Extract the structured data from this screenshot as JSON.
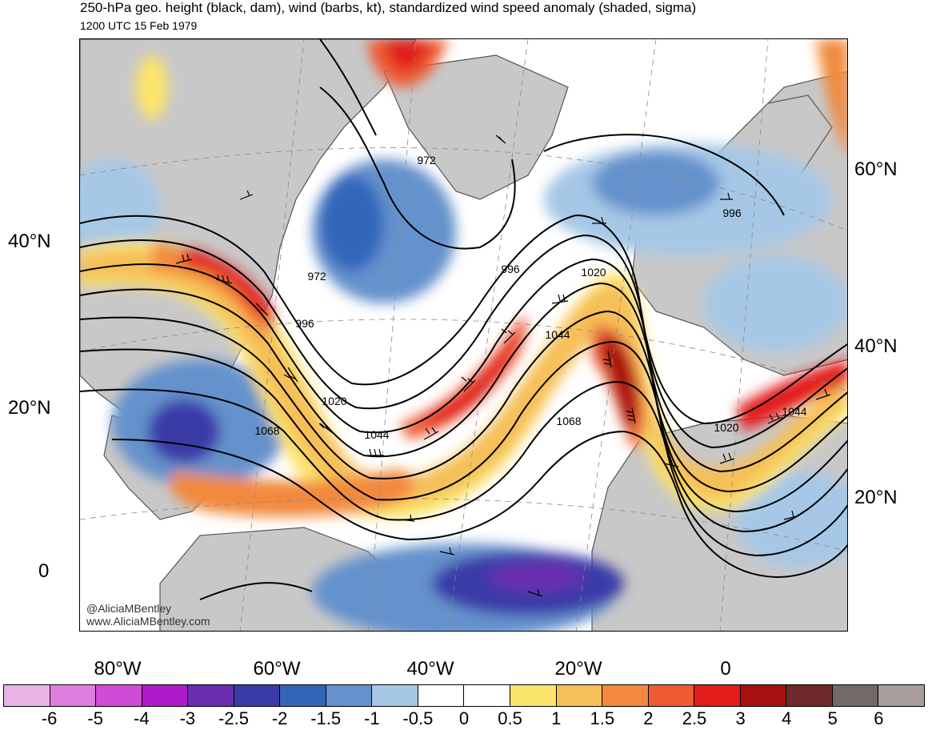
{
  "header": {
    "title": "250-hPa geo. height (black, dam), wind (barbs, kt), standardized wind speed anomaly (shaded, sigma)",
    "valid_time": "1200 UTC 15 Feb 1979"
  },
  "map": {
    "lat_labels_left": [
      "40°N",
      "20°N",
      "0"
    ],
    "lat_labels_right": [
      "60°N",
      "40°N",
      "20°N"
    ],
    "lon_labels": [
      "80°W",
      "60°W",
      "40°W",
      "20°W",
      "0"
    ],
    "contour_labels": [
      "972",
      "972",
      "996",
      "996",
      "996",
      "1020",
      "1020",
      "1020",
      "1044",
      "1044",
      "1044",
      "1068",
      "1068"
    ],
    "credit_twitter": "@AliciaMBentley",
    "credit_web": "www.AliciaMBentley.com",
    "colors": {
      "land": "#c8c8c8",
      "ocean": "#ffffff",
      "contour": "#000000",
      "coast": "#555555"
    }
  },
  "colorbar": {
    "labels": [
      "-6",
      "-5",
      "-4",
      "-3",
      "-2.5",
      "-2",
      "-1.5",
      "-1",
      "-0.5",
      "0",
      "0.5",
      "1",
      "1.5",
      "2",
      "2.5",
      "3",
      "4",
      "5",
      "6"
    ],
    "colors": [
      "#e8b4e6",
      "#e07ee0",
      "#d24bd6",
      "#b01ac8",
      "#6a2db0",
      "#3a3ba8",
      "#3366bb",
      "#6592cc",
      "#a6c8e6",
      "#ffffff",
      "#ffffff",
      "#fbe46a",
      "#f6bf58",
      "#f2893e",
      "#ee5a32",
      "#e21b1b",
      "#a81010",
      "#6e2a2a",
      "#746868",
      "#a89e9e"
    ]
  }
}
